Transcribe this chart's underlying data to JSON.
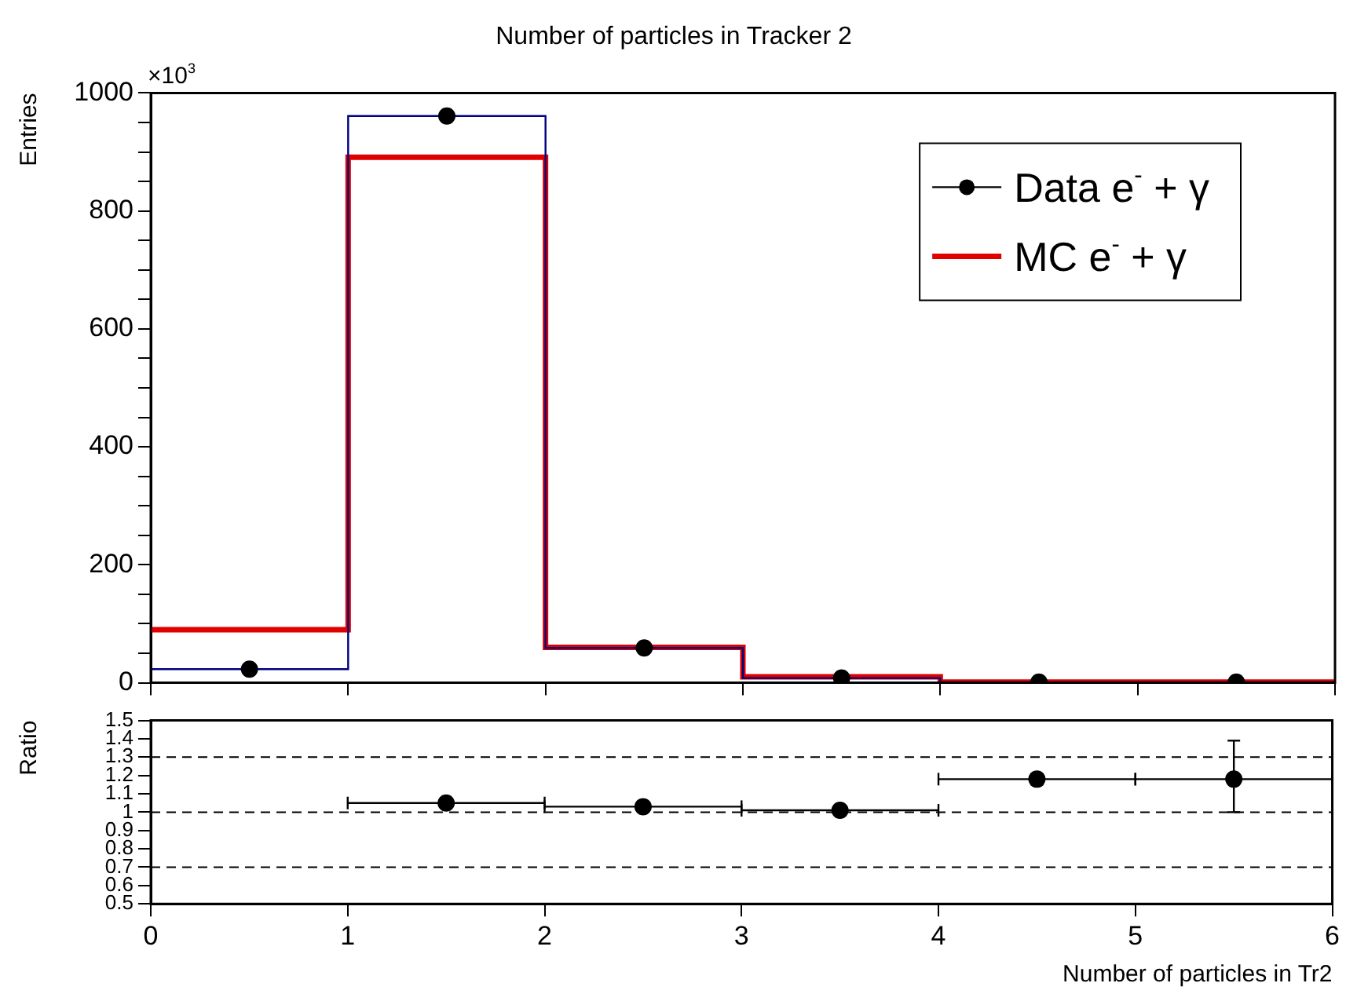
{
  "chart_data": [
    {
      "type": "histogram",
      "title": "Number of particles in Tracker 2",
      "ylabel": "Entries",
      "annotations": [
        "×10$^{3}$"
      ],
      "bins": [
        0,
        1,
        2,
        3,
        4,
        5,
        6
      ],
      "series": [
        {
          "name": "Data e$^{-}$ + γ",
          "type": "scatter",
          "x": [
            0.5,
            1.5,
            2.5,
            3.5,
            4.5,
            5.5
          ],
          "color": "#000000",
          "marker": "circle",
          "values": [
            23,
            961,
            59,
            8,
            1,
            1
          ]
        },
        {
          "type": "histogram",
          "color": "#000080",
          "values": [
            23,
            961,
            59,
            8,
            1,
            1
          ]
        },
        {
          "name": "MC e$^{-}$ + γ",
          "color": "#e00000",
          "marker": "none",
          "values": [
            90,
            891,
            60,
            10,
            1,
            1
          ]
        }
      ],
      "xlim": [
        0,
        6
      ],
      "xticks": [
        0,
        1,
        2,
        3,
        4,
        5,
        6
      ],
      "ylim": [
        0,
        1000
      ],
      "yticks": [
        0,
        {
          "value": 50,
          "label": null
        },
        {
          "value": 100,
          "label": null
        },
        {
          "value": 150,
          "label": null
        },
        200,
        {
          "value": 250,
          "label": null
        },
        {
          "value": 300,
          "label": null
        },
        {
          "value": 350,
          "label": null
        },
        400,
        {
          "value": 450,
          "label": null
        },
        {
          "value": 500,
          "label": null
        },
        {
          "value": 550,
          "label": null
        },
        600,
        {
          "value": 650,
          "label": null
        },
        {
          "value": 700,
          "label": null
        },
        {
          "value": 750,
          "label": null
        },
        800,
        {
          "value": 850,
          "label": null
        },
        {
          "value": 900,
          "label": null
        },
        {
          "value": 950,
          "label": null
        },
        1000
      ],
      "tick_labels": "y",
      "grid": false,
      "legend": "top right"
    },
    {
      "type": "scatter",
      "xlabel": "Number of particles in Tr2",
      "ylabel": "Ratio",
      "x": [
        1.5,
        2.5,
        3.5,
        4.5,
        5.5
      ],
      "values": [
        1.05,
        1.03,
        1.01,
        1.18,
        1.18
      ],
      "color": "#000000",
      "marker": "circle",
      "errors": [
        0.01,
        0.01,
        0.01,
        [
          1.15,
          1.21
        ],
        [
          1.0,
          1.39
        ]
      ],
      "xerrors": [
        0.5,
        0.5,
        0.5,
        0.5,
        0.5
      ],
      "xlim": [
        0,
        6
      ],
      "xticks": [
        0,
        1,
        2,
        3,
        4,
        5,
        6
      ],
      "ylim": [
        0.5,
        1.5
      ],
      "yticks": [
        0.5,
        0.6,
        0.7,
        0.8,
        0.9,
        1.0,
        1.1,
        1.2,
        1.3,
        1.4,
        1.5
      ],
      "ref_lines": [
        {
          "axis": "y",
          "value": 0.7,
          "line_style": "dashed"
        },
        {
          "axis": "y",
          "value": 1.0,
          "line_style": "dashed"
        },
        {
          "axis": "y",
          "value": 1.3,
          "line_style": "dashed"
        }
      ],
      "grid": false,
      "legend": false
    }
  ]
}
